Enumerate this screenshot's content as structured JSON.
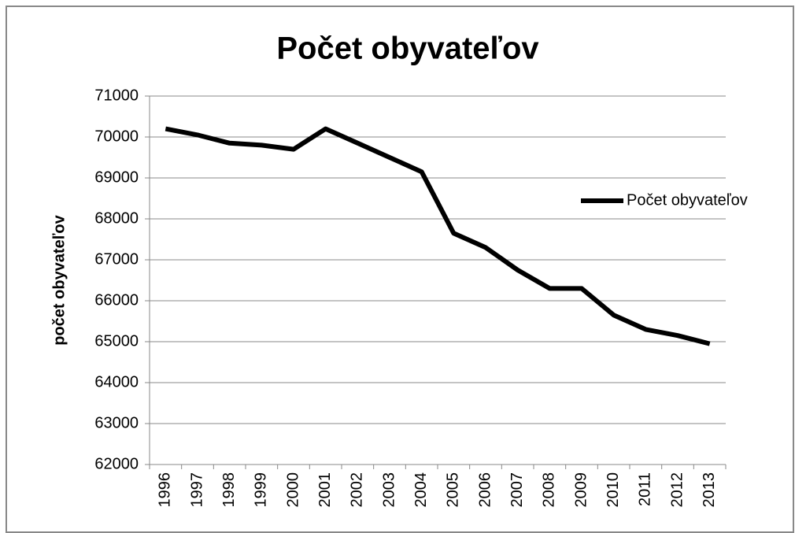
{
  "chart_data": {
    "type": "line",
    "title": "Počet obyvateľov",
    "y_label": "počet obyvateľov",
    "categories": [
      "1996",
      "1997",
      "1998",
      "1999",
      "2000",
      "2001",
      "2002",
      "2003",
      "2004",
      "2005",
      "2006",
      "2007",
      "2008",
      "2009",
      "2010",
      "2011",
      "2012",
      "2013"
    ],
    "series": [
      {
        "name": "Počet obyvateľov",
        "color": "#000000",
        "values": [
          70200,
          70050,
          69850,
          69800,
          69700,
          70200,
          69850,
          69500,
          69150,
          67650,
          67300,
          66750,
          66300,
          66300,
          65650,
          65300,
          65150,
          64950
        ]
      }
    ],
    "ylim": [
      62000,
      71000
    ],
    "yticks": [
      62000,
      63000,
      64000,
      65000,
      66000,
      67000,
      68000,
      69000,
      70000,
      71000
    ],
    "grid": true,
    "legend": "right"
  }
}
